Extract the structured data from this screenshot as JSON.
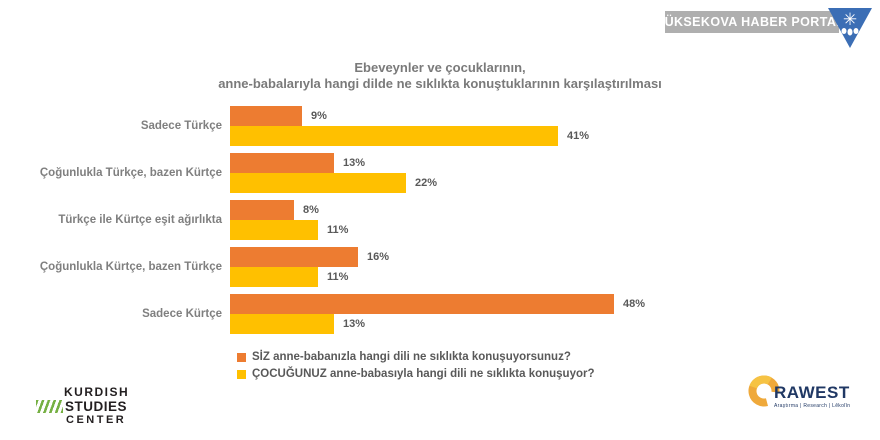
{
  "header": {
    "portal_name": "YÜKSEKOVA HABER PORTALI",
    "banner_color": "#afafaf",
    "logo_color": "#3b6eb5"
  },
  "chart_data": {
    "type": "bar",
    "orientation": "horizontal",
    "title_lines": [
      "Ebeveynler ve çocuklarının,",
      "anne-babalarıyla hangi dilde ne sıklıkta konuştuklarının karşılaştırılması"
    ],
    "categories": [
      "Sadece Türkçe",
      "Çoğunlukla Türkçe, bazen Kürtçe",
      "Türkçe ile Kürtçe eşit ağırlıkta",
      "Çoğunlukla Kürtçe, bazen Türkçe",
      "Sadece Kürtçe"
    ],
    "series": [
      {
        "name": "SİZ anne-babanızla hangi dili ne sıklıkta konuşuyorsunuz?",
        "color": "#ed7c31",
        "values": [
          9,
          13,
          8,
          16,
          48
        ]
      },
      {
        "name": "ÇOCUĞUNUZ anne-babasıyla hangi dili ne sıklıkta konuşuyor?",
        "color": "#ffc000",
        "values": [
          41,
          22,
          11,
          11,
          13
        ]
      }
    ],
    "value_suffix": "%",
    "xlim": [
      0,
      50
    ],
    "grid": false,
    "legend_position": "bottom-left",
    "value_label_color": "#595959",
    "category_label_color": "#7f7f7f"
  },
  "footer": {
    "kurdish_studies_center": {
      "line1": "KURDISH",
      "line2": "STUDIES",
      "line3": "CENTER",
      "stripe_color": "#76b043"
    },
    "rawest": {
      "brand": "RAWEST",
      "tagline": "Araştırma | Research | Lêkolîn",
      "brand_color": "#203864",
      "ring_color": "#efa93b"
    }
  }
}
